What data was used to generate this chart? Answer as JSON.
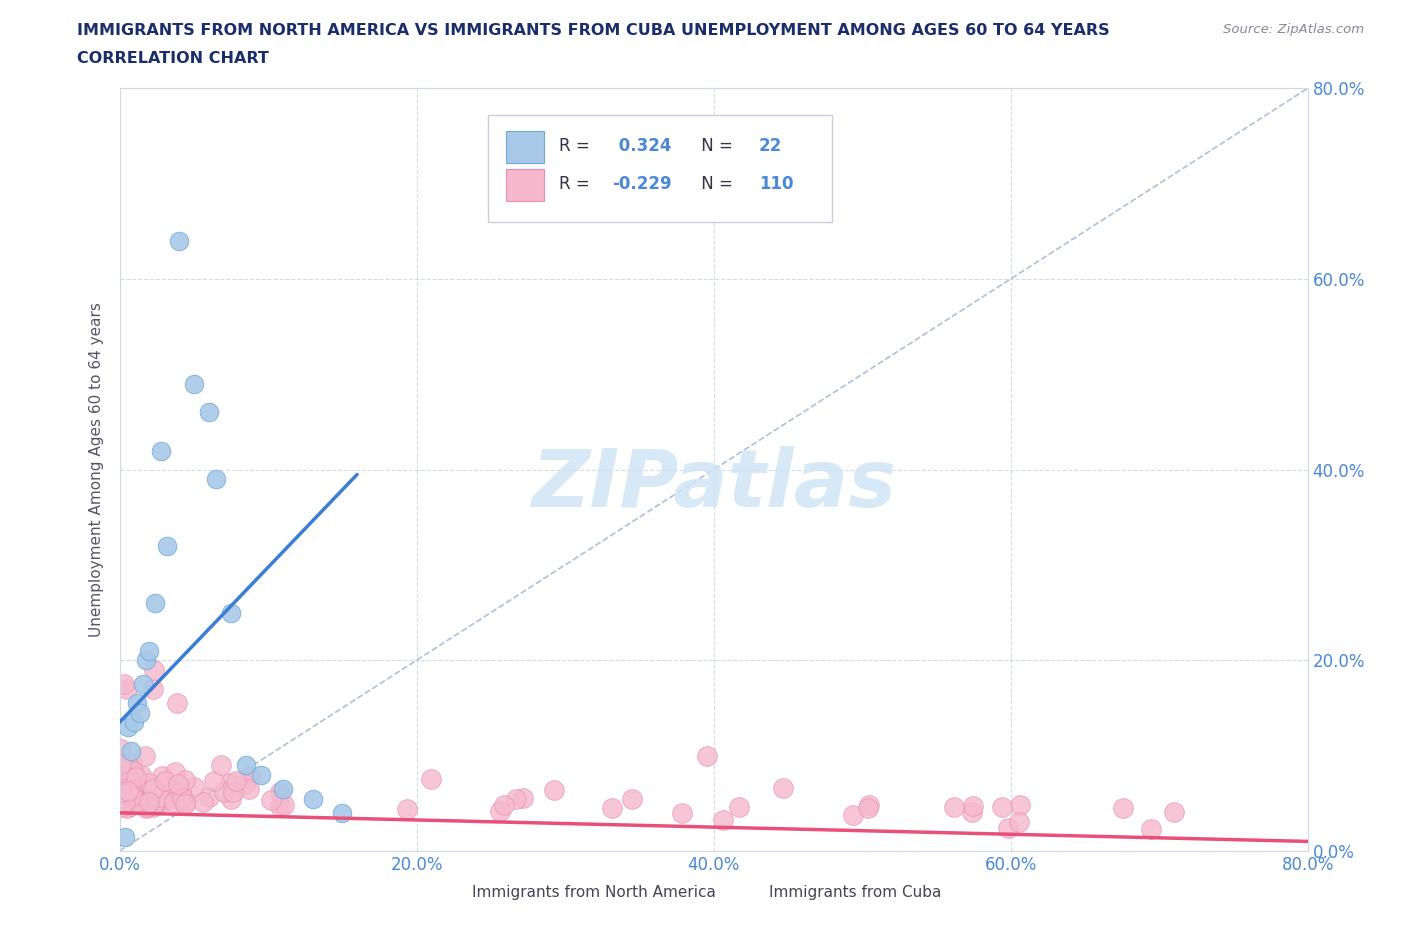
{
  "title_line1": "IMMIGRANTS FROM NORTH AMERICA VS IMMIGRANTS FROM CUBA UNEMPLOYMENT AMONG AGES 60 TO 64 YEARS",
  "title_line2": "CORRELATION CHART",
  "source_text": "Source: ZipAtlas.com",
  "ylabel": "Unemployment Among Ages 60 to 64 years",
  "xlim": [
    0.0,
    0.8
  ],
  "ylim": [
    0.0,
    0.8
  ],
  "xticks": [
    0.0,
    0.2,
    0.4,
    0.6,
    0.8
  ],
  "yticks": [
    0.0,
    0.2,
    0.4,
    0.6,
    0.8
  ],
  "xticklabels": [
    "0.0%",
    "20.0%",
    "40.0%",
    "60.0%",
    "80.0%"
  ],
  "yticklabels": [
    "0.0%",
    "20.0%",
    "40.0%",
    "60.0%",
    "80.0%"
  ],
  "blue_R": 0.324,
  "blue_N": 22,
  "pink_R": -0.229,
  "pink_N": 110,
  "blue_color": "#a8c8e8",
  "pink_color": "#f5b8cc",
  "blue_edge_color": "#6aaad8",
  "pink_edge_color": "#e890b0",
  "blue_line_color": "#3a7fd5",
  "pink_line_color": "#e8507a",
  "blue_scatter_x": [
    0.004,
    0.006,
    0.008,
    0.01,
    0.012,
    0.014,
    0.016,
    0.018,
    0.02,
    0.024,
    0.028,
    0.032,
    0.04,
    0.05,
    0.06,
    0.065,
    0.075,
    0.085,
    0.095,
    0.11,
    0.13,
    0.15
  ],
  "blue_scatter_y": [
    0.015,
    0.13,
    0.105,
    0.135,
    0.155,
    0.145,
    0.175,
    0.2,
    0.21,
    0.26,
    0.42,
    0.32,
    0.64,
    0.49,
    0.46,
    0.39,
    0.25,
    0.09,
    0.08,
    0.065,
    0.055,
    0.04
  ],
  "blue_trend_x": [
    0.0,
    0.16
  ],
  "blue_trend_y": [
    0.135,
    0.395
  ],
  "pink_trend_x": [
    0.0,
    0.8
  ],
  "pink_trend_y": [
    0.04,
    0.01
  ],
  "diag_line_x": [
    0.0,
    0.8
  ],
  "diag_line_y": [
    0.0,
    0.8
  ],
  "watermark_text": "ZIPatlas",
  "watermark_color": "#d0e4f5",
  "background_color": "#ffffff",
  "grid_color": "#c0cce0",
  "title_color": "#1a2e6b",
  "tick_color": "#4a88d8",
  "legend_label1": "Immigrants from North America",
  "legend_label2": "Immigrants from Cuba"
}
